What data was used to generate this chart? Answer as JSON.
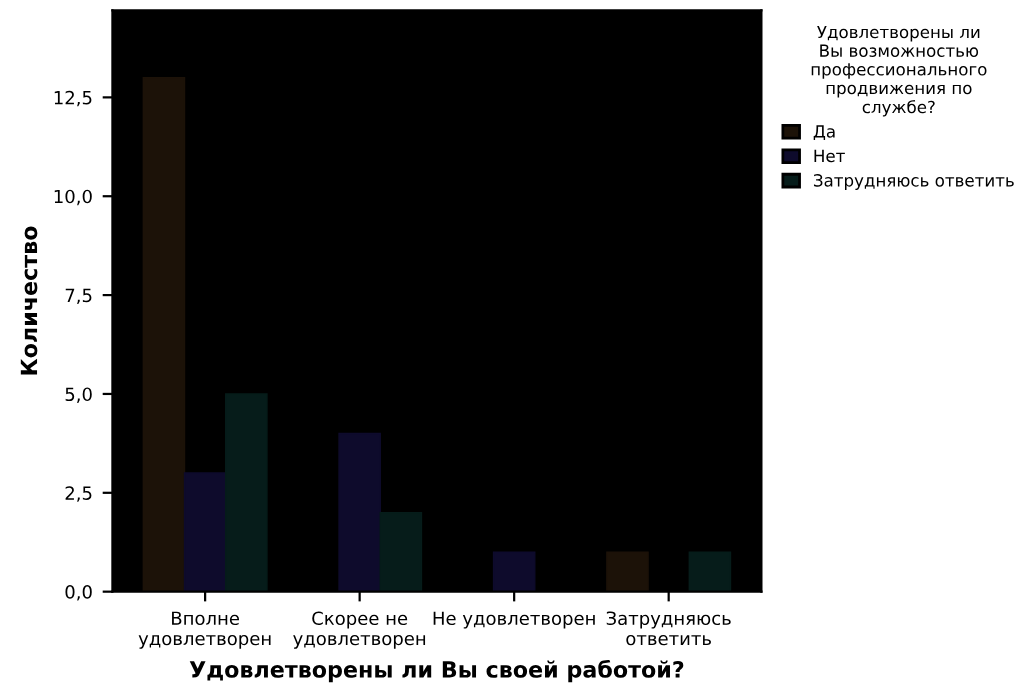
{
  "chart_data": {
    "type": "bar",
    "xlabel": "Удовлетворены ли Вы своей работой?",
    "ylabel": "Количество",
    "legend_title": "Удовлетворены ли\nВы возможностью\nпрофессионального\nпродвижения по\nслужбе?",
    "categories": [
      "Вполне\nудовлетворен",
      "Скорее не\nудовлетворен",
      "Не удовлетворен",
      "Затрудняюсь\nответить"
    ],
    "series": [
      {
        "name": "Да",
        "color": "#1c1208",
        "values": [
          13,
          null,
          null,
          1
        ]
      },
      {
        "name": "Нет",
        "color": "#0e0b2c",
        "values": [
          3,
          4,
          1,
          null
        ]
      },
      {
        "name": "Затрудняюсь ответить",
        "color": "#061c1a",
        "values": [
          5,
          2,
          null,
          1
        ]
      }
    ],
    "ylim": [
      0,
      14.7
    ],
    "yticks": [
      {
        "value": 0,
        "label": "0,0"
      },
      {
        "value": 2.5,
        "label": "2,5"
      },
      {
        "value": 5,
        "label": "5,0"
      },
      {
        "value": 7.5,
        "label": "7,5"
      },
      {
        "value": 10,
        "label": "10,0"
      },
      {
        "value": 12.5,
        "label": "12,5"
      }
    ],
    "grid": false,
    "legend": "top right"
  }
}
